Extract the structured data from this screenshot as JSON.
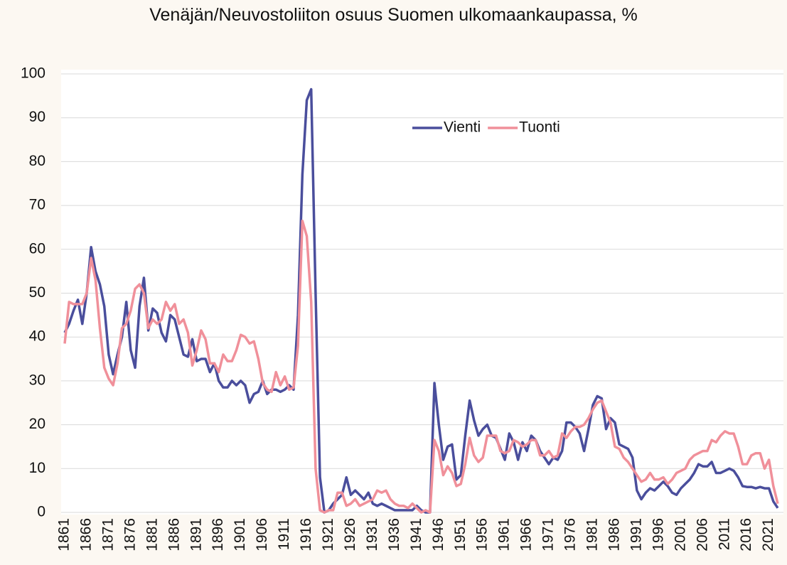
{
  "chart_data": {
    "type": "line",
    "title": "Venäjän/Neuvostoliiton osuus Suomen ulkomaankaupassa, %",
    "x": [
      1861,
      1862,
      1863,
      1864,
      1865,
      1866,
      1867,
      1868,
      1869,
      1870,
      1871,
      1872,
      1873,
      1874,
      1875,
      1876,
      1877,
      1878,
      1879,
      1880,
      1881,
      1882,
      1883,
      1884,
      1885,
      1886,
      1887,
      1888,
      1889,
      1890,
      1891,
      1892,
      1893,
      1894,
      1895,
      1896,
      1897,
      1898,
      1899,
      1900,
      1901,
      1902,
      1903,
      1904,
      1905,
      1906,
      1907,
      1908,
      1909,
      1910,
      1911,
      1912,
      1913,
      1914,
      1915,
      1916,
      1917,
      1918,
      1919,
      1920,
      1921,
      1922,
      1923,
      1924,
      1925,
      1926,
      1927,
      1928,
      1929,
      1930,
      1931,
      1932,
      1933,
      1934,
      1935,
      1936,
      1937,
      1938,
      1939,
      1940,
      1941,
      1942,
      1943,
      1944,
      1945,
      1946,
      1947,
      1948,
      1949,
      1950,
      1951,
      1952,
      1953,
      1954,
      1955,
      1956,
      1957,
      1958,
      1959,
      1960,
      1961,
      1962,
      1963,
      1964,
      1965,
      1966,
      1967,
      1968,
      1969,
      1970,
      1971,
      1972,
      1973,
      1974,
      1975,
      1976,
      1977,
      1978,
      1979,
      1980,
      1981,
      1982,
      1983,
      1984,
      1985,
      1986,
      1987,
      1988,
      1989,
      1990,
      1991,
      1992,
      1993,
      1994,
      1995,
      1996,
      1997,
      1998,
      1999,
      2000,
      2001,
      2002,
      2003,
      2004,
      2005,
      2006,
      2007,
      2008,
      2009,
      2010,
      2011,
      2012,
      2013,
      2014,
      2015,
      2016,
      2017,
      2018,
      2019,
      2020,
      2021,
      2022,
      2023
    ],
    "series": [
      {
        "name": "Vienti",
        "color": "#4a4e9c",
        "values": [
          41,
          43,
          46,
          48.5,
          43,
          50,
          60.5,
          55,
          52,
          47,
          36,
          31.5,
          36,
          40,
          48,
          37,
          33,
          47,
          53.5,
          41.5,
          46.5,
          45.5,
          41,
          39,
          45,
          44,
          40,
          36,
          35.5,
          39.5,
          34.5,
          35,
          35,
          32,
          34,
          30,
          28.5,
          28.5,
          30,
          29,
          30,
          29,
          25,
          27,
          27.5,
          30,
          27,
          28,
          28,
          27.5,
          28,
          29,
          28,
          45,
          77,
          94,
          96.5,
          50,
          8,
          0,
          0.5,
          2,
          3,
          4,
          8,
          4,
          5,
          4,
          3,
          4.5,
          2,
          1.5,
          2,
          1.5,
          1,
          0.5,
          0.5,
          0.5,
          0.5,
          0.5,
          1.5,
          0.5,
          0,
          0,
          29.5,
          20,
          12,
          15,
          15.5,
          7.5,
          8.5,
          17.5,
          25.5,
          21,
          17.5,
          19,
          20,
          17.5,
          17,
          14.5,
          12,
          18,
          16,
          12,
          16,
          14,
          17.5,
          16.5,
          14,
          12.5,
          11,
          12.5,
          12,
          14,
          20.5,
          20.5,
          19.5,
          18,
          14,
          19,
          24.5,
          26.5,
          26,
          19,
          21.5,
          20.5,
          15.5,
          15,
          14.5,
          12.5,
          5,
          3,
          4.5,
          5.5,
          5,
          6,
          7,
          6,
          4.5,
          4,
          5.5,
          6.5,
          7.5,
          9,
          11,
          10.5,
          10.5,
          11.5,
          9,
          9,
          9.5,
          10,
          9.5,
          8,
          6,
          5.8,
          5.8,
          5.5,
          5.8,
          5.5,
          5.5,
          2.5,
          1
        ]
      },
      {
        "name": "Tuonti",
        "color": "#f0909a",
        "values": [
          38.5,
          48,
          47.5,
          47.5,
          47.5,
          50,
          58,
          53,
          42,
          33,
          30.5,
          29,
          34,
          42,
          43,
          46,
          51,
          52,
          50,
          42,
          44,
          43,
          44,
          48,
          46,
          47.5,
          43,
          44,
          41,
          33.5,
          37,
          41.5,
          39.5,
          34,
          34,
          32,
          36,
          34.5,
          34.5,
          37,
          40.5,
          40,
          38.5,
          39,
          35,
          29.5,
          28,
          27.5,
          32,
          29,
          31,
          28,
          28.5,
          38,
          66.5,
          63,
          48,
          10,
          0.5,
          0,
          0.5,
          0.5,
          4.5,
          4.5,
          1.5,
          2,
          3,
          1.5,
          2,
          2.5,
          3,
          5,
          4.5,
          5,
          3,
          2,
          1.5,
          1.5,
          1,
          2,
          1,
          0,
          0.5,
          0,
          16.5,
          14,
          8.5,
          10.5,
          9,
          6,
          6.5,
          11,
          17,
          13,
          11.5,
          12.5,
          17.5,
          17.5,
          17.5,
          14,
          13.5,
          14,
          16.5,
          16,
          15,
          15.5,
          16.5,
          16.5,
          13,
          13,
          14,
          12.5,
          13,
          18,
          17,
          18.5,
          19.5,
          19.5,
          20,
          21.5,
          23.5,
          25,
          25.5,
          23,
          20.5,
          15,
          14.5,
          12.5,
          11.5,
          10,
          8.5,
          7,
          7.5,
          9,
          7.5,
          7.5,
          8,
          6.5,
          7.5,
          9,
          9.5,
          10,
          12,
          13,
          13.5,
          14,
          14,
          16.5,
          16,
          17.5,
          18.5,
          18,
          18,
          15,
          11,
          11,
          13,
          13.5,
          13.5,
          10,
          12,
          6,
          2
        ]
      }
    ],
    "xlim": [
      1861,
      2023
    ],
    "xticks": [
      1861,
      1866,
      1871,
      1876,
      1881,
      1886,
      1891,
      1896,
      1901,
      1906,
      1911,
      1916,
      1921,
      1926,
      1931,
      1936,
      1941,
      1946,
      1951,
      1956,
      1961,
      1966,
      1971,
      1976,
      1981,
      1986,
      1991,
      1996,
      2001,
      2006,
      2011,
      2016,
      2021
    ],
    "ylim": [
      0,
      100
    ],
    "yticks": [
      0,
      10,
      20,
      30,
      40,
      50,
      60,
      70,
      80,
      90,
      100
    ],
    "grid": true,
    "legend": "top"
  }
}
